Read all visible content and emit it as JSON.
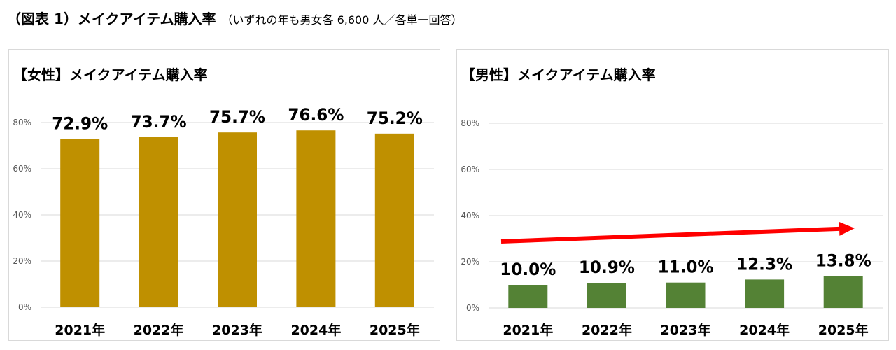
{
  "title": {
    "main": "（図表 1）メイクアイテム購入率",
    "sub": "（いずれの年も男女各 6,600 人／各単一回答）"
  },
  "chart_data": [
    {
      "type": "bar",
      "title": "【女性】メイクアイテム購入率",
      "categories": [
        "2021年",
        "2022年",
        "2023年",
        "2024年",
        "2025年"
      ],
      "values": [
        72.9,
        73.7,
        75.7,
        76.6,
        75.2
      ],
      "data_labels": [
        "72.9%",
        "73.7%",
        "75.7%",
        "76.6%",
        "75.2%"
      ],
      "y_ticks": [
        "0%",
        "20%",
        "40%",
        "60%",
        "80%"
      ],
      "ylim": [
        0,
        80
      ],
      "grid": true,
      "bar_color": "#BF9000"
    },
    {
      "type": "bar",
      "title": "【男性】メイクアイテム購入率",
      "categories": [
        "2021年",
        "2022年",
        "2023年",
        "2024年",
        "2025年"
      ],
      "values": [
        10.0,
        10.9,
        11.0,
        12.3,
        13.8
      ],
      "data_labels": [
        "10.0%",
        "10.9%",
        "11.0%",
        "12.3%",
        "13.8%"
      ],
      "y_ticks": [
        "0%",
        "20%",
        "40%",
        "60%",
        "80%"
      ],
      "ylim": [
        0,
        80
      ],
      "grid": true,
      "bar_color": "#548235",
      "trend_arrow_color": "#FF0000"
    }
  ]
}
